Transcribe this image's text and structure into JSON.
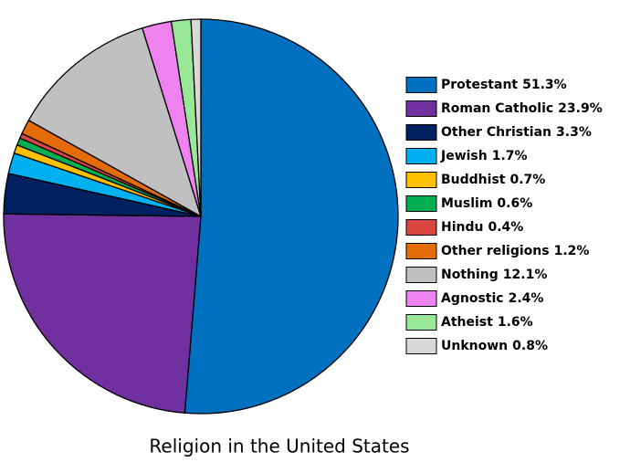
{
  "chart_data": {
    "type": "pie",
    "title": "Religion in the United States",
    "categories": [
      "Protestant",
      "Roman Catholic",
      "Other Christian",
      "Jewish",
      "Buddhist",
      "Muslim",
      "Hindu",
      "Other religions",
      "Nothing",
      "Agnostic",
      "Atheist",
      "Unknown"
    ],
    "values": [
      51.3,
      23.9,
      3.3,
      1.7,
      0.7,
      0.6,
      0.4,
      1.2,
      12.1,
      2.4,
      1.6,
      0.8
    ],
    "value_labels": [
      "51.3%",
      "23.9%",
      "3.3%",
      "1.7%",
      "0.7%",
      "0.6%",
      "0.4%",
      "1.2%",
      "12.1%",
      "2.4%",
      "1.6%",
      "0.8%"
    ],
    "colors": [
      "#0070c0",
      "#7030a0",
      "#002060",
      "#00b0f0",
      "#ffc000",
      "#00b050",
      "#d9453f",
      "#e36c09",
      "#c0c0c0",
      "#ee82ee",
      "#98e898",
      "#d8d8d8"
    ],
    "legend": "right"
  }
}
